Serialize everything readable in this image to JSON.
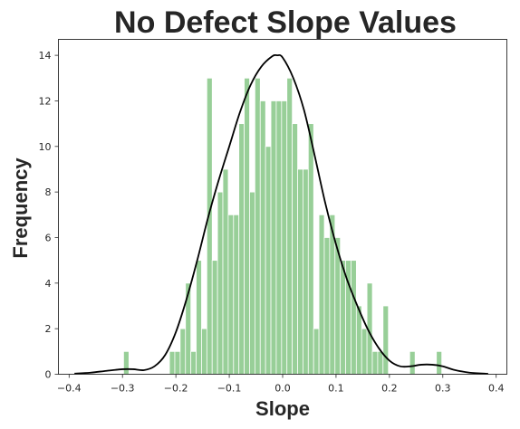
{
  "chart_data": {
    "type": "bar",
    "title": "No Defect Slope Values",
    "xlabel": "Slope",
    "ylabel": "Frequency",
    "xlim": [
      -0.42,
      0.42
    ],
    "ylim": [
      0,
      14.7
    ],
    "x_ticks": [
      -0.4,
      -0.3,
      -0.2,
      -0.1,
      0.0,
      0.1,
      0.2,
      0.3,
      0.4
    ],
    "x_tick_labels": [
      "−0.4",
      "−0.3",
      "−0.2",
      "−0.1",
      "0.0",
      "0.1",
      "0.2",
      "0.3",
      "0.4"
    ],
    "y_ticks": [
      0,
      2,
      4,
      6,
      8,
      10,
      12,
      14
    ],
    "y_tick_labels": [
      "0",
      "2",
      "4",
      "6",
      "8",
      "10",
      "12",
      "14"
    ],
    "grid": false,
    "bar_color": "#98cf98",
    "bar_edge_color": "#ffffff",
    "kde_color": "#000000",
    "bin_width": 0.0101,
    "histogram": [
      {
        "left": -0.298,
        "count": 1
      },
      {
        "left": -0.212,
        "count": 1
      },
      {
        "left": -0.202,
        "count": 1
      },
      {
        "left": -0.192,
        "count": 2
      },
      {
        "left": -0.182,
        "count": 4
      },
      {
        "left": -0.172,
        "count": 1
      },
      {
        "left": -0.162,
        "count": 5
      },
      {
        "left": -0.152,
        "count": 2
      },
      {
        "left": -0.142,
        "count": 13
      },
      {
        "left": -0.132,
        "count": 5
      },
      {
        "left": -0.122,
        "count": 8
      },
      {
        "left": -0.112,
        "count": 9
      },
      {
        "left": -0.102,
        "count": 7
      },
      {
        "left": -0.092,
        "count": 7
      },
      {
        "left": -0.082,
        "count": 11
      },
      {
        "left": -0.072,
        "count": 13
      },
      {
        "left": -0.062,
        "count": 8
      },
      {
        "left": -0.052,
        "count": 13
      },
      {
        "left": -0.042,
        "count": 12
      },
      {
        "left": -0.032,
        "count": 10
      },
      {
        "left": -0.022,
        "count": 12
      },
      {
        "left": -0.012,
        "count": 12
      },
      {
        "left": -0.002,
        "count": 12
      },
      {
        "left": 0.008,
        "count": 13
      },
      {
        "left": 0.018,
        "count": 11
      },
      {
        "left": 0.028,
        "count": 9
      },
      {
        "left": 0.038,
        "count": 9
      },
      {
        "left": 0.048,
        "count": 11
      },
      {
        "left": 0.058,
        "count": 2
      },
      {
        "left": 0.068,
        "count": 7
      },
      {
        "left": 0.078,
        "count": 6
      },
      {
        "left": 0.088,
        "count": 7
      },
      {
        "left": 0.098,
        "count": 6
      },
      {
        "left": 0.108,
        "count": 5
      },
      {
        "left": 0.118,
        "count": 5
      },
      {
        "left": 0.128,
        "count": 5
      },
      {
        "left": 0.138,
        "count": 3
      },
      {
        "left": 0.148,
        "count": 2
      },
      {
        "left": 0.158,
        "count": 4
      },
      {
        "left": 0.168,
        "count": 1
      },
      {
        "left": 0.178,
        "count": 1
      },
      {
        "left": 0.188,
        "count": 3
      },
      {
        "left": 0.238,
        "count": 1
      },
      {
        "left": 0.288,
        "count": 1
      }
    ],
    "kde": {
      "x": [
        -0.39,
        -0.36,
        -0.33,
        -0.3,
        -0.28,
        -0.26,
        -0.24,
        -0.22,
        -0.2,
        -0.18,
        -0.16,
        -0.14,
        -0.12,
        -0.1,
        -0.08,
        -0.06,
        -0.04,
        -0.02,
        -0.01,
        0.0,
        0.02,
        0.04,
        0.06,
        0.08,
        0.1,
        0.12,
        0.14,
        0.16,
        0.18,
        0.2,
        0.22,
        0.24,
        0.26,
        0.28,
        0.3,
        0.32,
        0.35,
        0.385
      ],
      "y": [
        0.03,
        0.07,
        0.15,
        0.22,
        0.22,
        0.18,
        0.35,
        0.85,
        1.85,
        3.3,
        5.0,
        6.85,
        8.5,
        10.0,
        11.5,
        12.7,
        13.5,
        13.95,
        14.0,
        13.9,
        13.0,
        11.6,
        9.6,
        7.5,
        5.7,
        4.2,
        3.0,
        1.95,
        1.15,
        0.6,
        0.35,
        0.35,
        0.42,
        0.42,
        0.35,
        0.2,
        0.07,
        0.02
      ]
    }
  }
}
